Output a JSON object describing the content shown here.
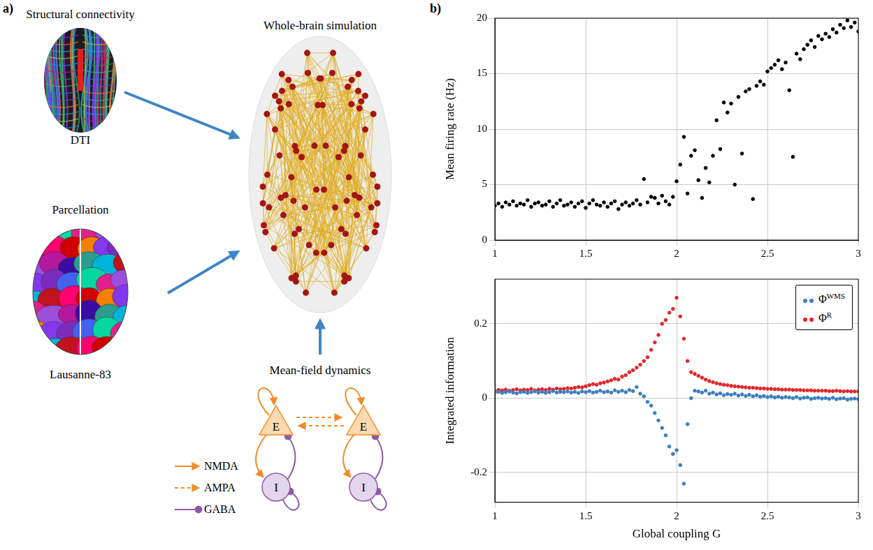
{
  "figure": {
    "panel_a": {
      "letter": "a)",
      "structural_connectivity": {
        "title": "Structural connectivity",
        "caption": "DTI"
      },
      "parcellation": {
        "title": "Parcellation",
        "caption": "Lausanne-83"
      },
      "simulation": {
        "title": "Whole-brain simulation"
      },
      "mean_field": {
        "title": "Mean-field dynamics",
        "excitatory": "E",
        "inhibitory": "I",
        "legend": [
          {
            "name": "NMDA",
            "color": "#f28c28",
            "line_style": "solid",
            "marker": "arrow"
          },
          {
            "name": "AMPA",
            "color": "#f28c28",
            "line_style": "dashed",
            "marker": "arrow"
          },
          {
            "name": "GABA",
            "color": "#8e5aa6",
            "line_style": "solid",
            "marker": "dot"
          }
        ]
      }
    },
    "panel_b": {
      "letter": "b)"
    }
  },
  "chart_data": [
    {
      "type": "scatter",
      "y_label": "Mean firing rate (Hz)",
      "color": "#000000",
      "grid": true,
      "xlim": [
        1,
        3
      ],
      "xticks": [
        1,
        1.5,
        2,
        2.5,
        3
      ],
      "ylim": [
        0,
        20
      ],
      "yticks": [
        0,
        5,
        10,
        15,
        20
      ],
      "x": [
        1,
        1.02,
        1.04,
        1.06,
        1.08,
        1.1,
        1.12,
        1.14,
        1.16,
        1.18,
        1.2,
        1.22,
        1.24,
        1.26,
        1.28,
        1.3,
        1.32,
        1.34,
        1.36,
        1.38,
        1.4,
        1.42,
        1.44,
        1.46,
        1.48,
        1.5,
        1.52,
        1.54,
        1.56,
        1.58,
        1.6,
        1.62,
        1.64,
        1.66,
        1.68,
        1.7,
        1.72,
        1.74,
        1.76,
        1.78,
        1.8,
        1.82,
        1.84,
        1.86,
        1.88,
        1.9,
        1.92,
        1.94,
        1.96,
        1.98,
        2,
        2.02,
        2.04,
        2.06,
        2.08,
        2.1,
        2.12,
        2.14,
        2.16,
        2.18,
        2.2,
        2.22,
        2.24,
        2.26,
        2.28,
        2.3,
        2.32,
        2.34,
        2.36,
        2.38,
        2.4,
        2.42,
        2.44,
        2.46,
        2.48,
        2.5,
        2.52,
        2.54,
        2.56,
        2.58,
        2.6,
        2.62,
        2.64,
        2.66,
        2.68,
        2.7,
        2.72,
        2.74,
        2.76,
        2.78,
        2.8,
        2.82,
        2.84,
        2.86,
        2.88,
        2.9,
        2.92,
        2.94,
        2.96,
        2.98,
        3
      ],
      "values": [
        3.1,
        3.3,
        3.0,
        3.4,
        3.2,
        3.5,
        3.1,
        3.3,
        3.2,
        3.6,
        3.0,
        3.3,
        3.4,
        3.1,
        3.2,
        3.5,
        3.0,
        3.3,
        3.6,
        3.1,
        3.2,
        3.4,
        3.0,
        3.3,
        3.5,
        2.9,
        3.3,
        3.6,
        3.2,
        3.1,
        3.4,
        3.0,
        3.3,
        3.5,
        2.8,
        3.2,
        3.4,
        3.1,
        3.3,
        3.6,
        3.2,
        5.5,
        3.4,
        3.9,
        3.8,
        3.3,
        4.0,
        3.5,
        3.2,
        3.9,
        5.3,
        6.8,
        9.3,
        4.2,
        7.6,
        8.1,
        5.4,
        3.8,
        6.5,
        5.2,
        7.6,
        10.8,
        8.2,
        12.4,
        11.5,
        12.3,
        5.0,
        12.9,
        7.8,
        13.4,
        13.6,
        3.7,
        13.9,
        14.3,
        14.0,
        15.2,
        15.5,
        15.8,
        16.2,
        15.4,
        16.0,
        13.5,
        7.5,
        16.8,
        16.3,
        17.2,
        17.6,
        18.0,
        17.4,
        18.4,
        18.1,
        18.6,
        18.3,
        19.0,
        18.7,
        19.4,
        19.1,
        19.8,
        19.2,
        19.6,
        18.8
      ]
    },
    {
      "type": "scatter",
      "x_label": "Global coupling G",
      "y_label": "Integrated information",
      "grid": true,
      "legend": "top right",
      "xlim": [
        1,
        3
      ],
      "xticks": [
        1,
        1.5,
        2,
        2.5,
        3
      ],
      "ylim": [
        -0.28,
        0.32
      ],
      "yticks": [
        -0.2,
        0,
        0.2
      ],
      "x": [
        1,
        1.02,
        1.04,
        1.06,
        1.08,
        1.1,
        1.12,
        1.14,
        1.16,
        1.18,
        1.2,
        1.22,
        1.24,
        1.26,
        1.28,
        1.3,
        1.32,
        1.34,
        1.36,
        1.38,
        1.4,
        1.42,
        1.44,
        1.46,
        1.48,
        1.5,
        1.52,
        1.54,
        1.56,
        1.58,
        1.6,
        1.62,
        1.64,
        1.66,
        1.68,
        1.7,
        1.72,
        1.74,
        1.76,
        1.78,
        1.8,
        1.82,
        1.84,
        1.86,
        1.88,
        1.9,
        1.92,
        1.94,
        1.96,
        1.98,
        2,
        2.02,
        2.04,
        2.06,
        2.08,
        2.1,
        2.12,
        2.14,
        2.16,
        2.18,
        2.2,
        2.22,
        2.24,
        2.26,
        2.28,
        2.3,
        2.32,
        2.34,
        2.36,
        2.38,
        2.4,
        2.42,
        2.44,
        2.46,
        2.48,
        2.5,
        2.52,
        2.54,
        2.56,
        2.58,
        2.6,
        2.62,
        2.64,
        2.66,
        2.68,
        2.7,
        2.72,
        2.74,
        2.76,
        2.78,
        2.8,
        2.82,
        2.84,
        2.86,
        2.88,
        2.9,
        2.92,
        2.94,
        2.96,
        2.98,
        3
      ],
      "series": [
        {
          "name": "ΦWMS",
          "color": "#3a7ebf",
          "values": [
            0.015,
            0.017,
            0.014,
            0.016,
            0.018,
            0.015,
            0.013,
            0.016,
            0.017,
            0.014,
            0.016,
            0.018,
            0.015,
            0.017,
            0.014,
            0.016,
            0.019,
            0.015,
            0.017,
            0.016,
            0.018,
            0.015,
            0.017,
            0.014,
            0.018,
            0.016,
            0.019,
            0.015,
            0.017,
            0.02,
            0.016,
            0.018,
            0.015,
            0.021,
            0.017,
            0.02,
            0.016,
            0.022,
            0.019,
            0.03,
            0.012,
            0.005,
            -0.01,
            -0.02,
            -0.04,
            -0.06,
            -0.08,
            -0.1,
            -0.13,
            -0.15,
            -0.14,
            -0.18,
            -0.23,
            -0.07,
            0.0,
            0.02,
            0.018,
            0.015,
            0.02,
            0.012,
            0.015,
            0.01,
            0.013,
            0.008,
            0.011,
            0.009,
            0.012,
            0.007,
            0.01,
            0.006,
            0.009,
            0.005,
            0.008,
            0.004,
            0.006,
            0.003,
            0.005,
            0.002,
            0.004,
            0.001,
            0.003,
            0.002,
            0.0,
            0.003,
            -0.001,
            0.001,
            0.002,
            -0.002,
            0.0,
            0.001,
            -0.001,
            0.0,
            -0.002,
            0.001,
            -0.003,
            -0.001,
            0.0,
            -0.004,
            -0.002,
            -0.001,
            -0.003
          ]
        },
        {
          "name": "ΦR",
          "color": "#e0262a",
          "values": [
            0.02,
            0.022,
            0.021,
            0.023,
            0.02,
            0.022,
            0.024,
            0.021,
            0.023,
            0.022,
            0.025,
            0.021,
            0.023,
            0.024,
            0.022,
            0.025,
            0.023,
            0.026,
            0.024,
            0.025,
            0.027,
            0.026,
            0.028,
            0.03,
            0.029,
            0.032,
            0.035,
            0.038,
            0.036,
            0.04,
            0.042,
            0.045,
            0.048,
            0.052,
            0.05,
            0.058,
            0.062,
            0.07,
            0.075,
            0.082,
            0.09,
            0.1,
            0.11,
            0.13,
            0.15,
            0.17,
            0.2,
            0.21,
            0.23,
            0.24,
            0.27,
            0.22,
            0.16,
            0.1,
            0.07,
            0.065,
            0.06,
            0.055,
            0.05,
            0.046,
            0.043,
            0.04,
            0.038,
            0.036,
            0.035,
            0.033,
            0.032,
            0.031,
            0.03,
            0.029,
            0.028,
            0.028,
            0.027,
            0.026,
            0.026,
            0.025,
            0.025,
            0.024,
            0.024,
            0.023,
            0.023,
            0.023,
            0.022,
            0.022,
            0.022,
            0.021,
            0.021,
            0.021,
            0.02,
            0.02,
            0.02,
            0.02,
            0.019,
            0.019,
            0.02,
            0.019,
            0.018,
            0.019,
            0.018,
            0.018,
            0.018
          ]
        }
      ]
    }
  ]
}
